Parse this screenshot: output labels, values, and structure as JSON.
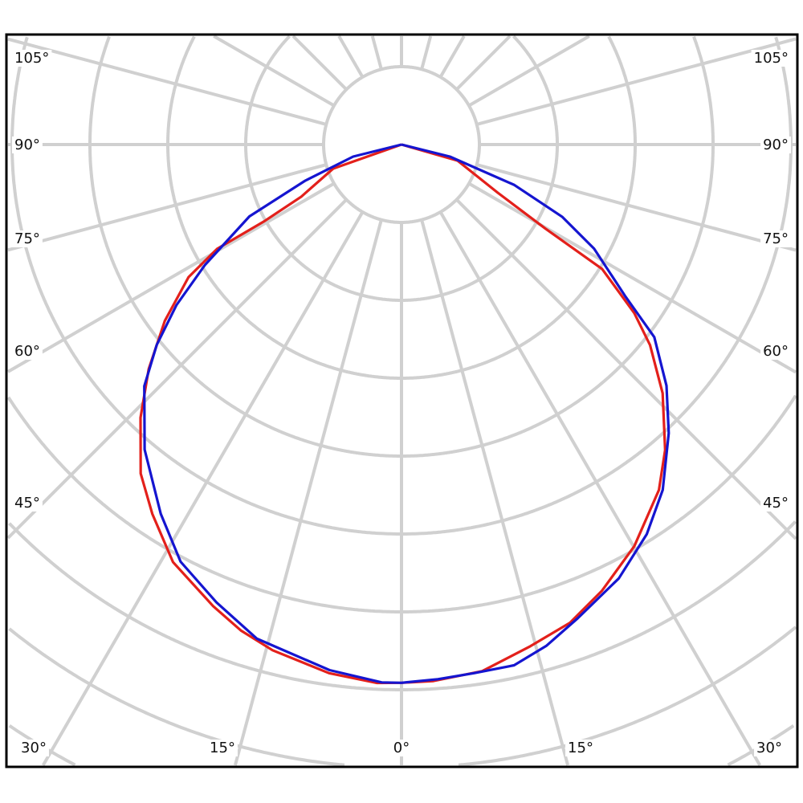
{
  "chart_data": {
    "type": "polar",
    "title": "",
    "angle_unit": "degrees",
    "angle_labels_left": [
      "105°",
      "90°",
      "75°",
      "60°",
      "45°",
      "30°",
      "15°"
    ],
    "angle_labels_bottom": [
      "0°"
    ],
    "angle_labels_right": [
      "15°",
      "30°",
      "45°",
      "60°",
      "75°",
      "90°",
      "105°"
    ],
    "angle_label_values": [
      105,
      90,
      75,
      60,
      45,
      30,
      15,
      0
    ],
    "radial_gridline_step_deg": 15,
    "radial_rings": 12,
    "radial_tick_labels": [],
    "grid": true,
    "grid_color": "#d0d0d0",
    "series": [
      {
        "color": "#e3201b",
        "points": [
          [
            -90,
            0
          ],
          [
            -70.6,
            0.93
          ],
          [
            -62.5,
            1.45
          ],
          [
            -60.8,
            2.01
          ],
          [
            -60.5,
            2.72
          ],
          [
            -58.1,
            3.22
          ],
          [
            -53.3,
            3.79
          ],
          [
            -48.4,
            4.34
          ],
          [
            -43.7,
            4.85
          ],
          [
            -38.4,
            5.39
          ],
          [
            -34,
            5.72
          ],
          [
            -28.7,
            6.11
          ],
          [
            -22.2,
            6.4
          ],
          [
            -18.3,
            6.57
          ],
          [
            -14.3,
            6.7
          ],
          [
            -7.8,
            6.85
          ],
          [
            -2.6,
            6.92
          ],
          [
            0,
            6.91
          ],
          [
            3.4,
            6.9
          ],
          [
            8.7,
            6.84
          ],
          [
            14.4,
            6.65
          ],
          [
            19.4,
            6.51
          ],
          [
            24.2,
            6.28
          ],
          [
            30.1,
            5.96
          ],
          [
            36.7,
            5.53
          ],
          [
            40.8,
            5.18
          ],
          [
            46.4,
            4.63
          ],
          [
            51.1,
            4.1
          ],
          [
            54.1,
            3.69
          ],
          [
            58.2,
            3.03
          ],
          [
            59.7,
            2.14
          ],
          [
            63.4,
            1.38
          ],
          [
            74,
            0.75
          ],
          [
            90,
            0
          ]
        ]
      },
      {
        "color": "#1515d0",
        "points": [
          [
            -90,
            0
          ],
          [
            -76,
            0.64
          ],
          [
            -69.4,
            1.32
          ],
          [
            -64.7,
            2.16
          ],
          [
            -58.5,
            2.96
          ],
          [
            -54.5,
            3.55
          ],
          [
            -50.7,
            4.06
          ],
          [
            -46.8,
            4.53
          ],
          [
            -40.1,
            5.12
          ],
          [
            -33.1,
            5.66
          ],
          [
            -27.9,
            6.06
          ],
          [
            -22,
            6.34
          ],
          [
            -16.3,
            6.61
          ],
          [
            -7.8,
            6.81
          ],
          [
            -2.1,
            6.91
          ],
          [
            0,
            6.91
          ],
          [
            3.9,
            6.88
          ],
          [
            7.8,
            6.85
          ],
          [
            12.2,
            6.84
          ],
          [
            16.1,
            6.7
          ],
          [
            20.4,
            6.49
          ],
          [
            26.6,
            6.23
          ],
          [
            32.2,
            5.91
          ],
          [
            37.1,
            5.56
          ],
          [
            42.8,
            5.05
          ],
          [
            47.7,
            4.6
          ],
          [
            52.7,
            4.08
          ],
          [
            55.8,
            3.48
          ],
          [
            61.6,
            2.81
          ],
          [
            65.8,
            2.26
          ],
          [
            70.3,
            1.54
          ],
          [
            76,
            0.64
          ],
          [
            90,
            0
          ]
        ]
      }
    ]
  }
}
